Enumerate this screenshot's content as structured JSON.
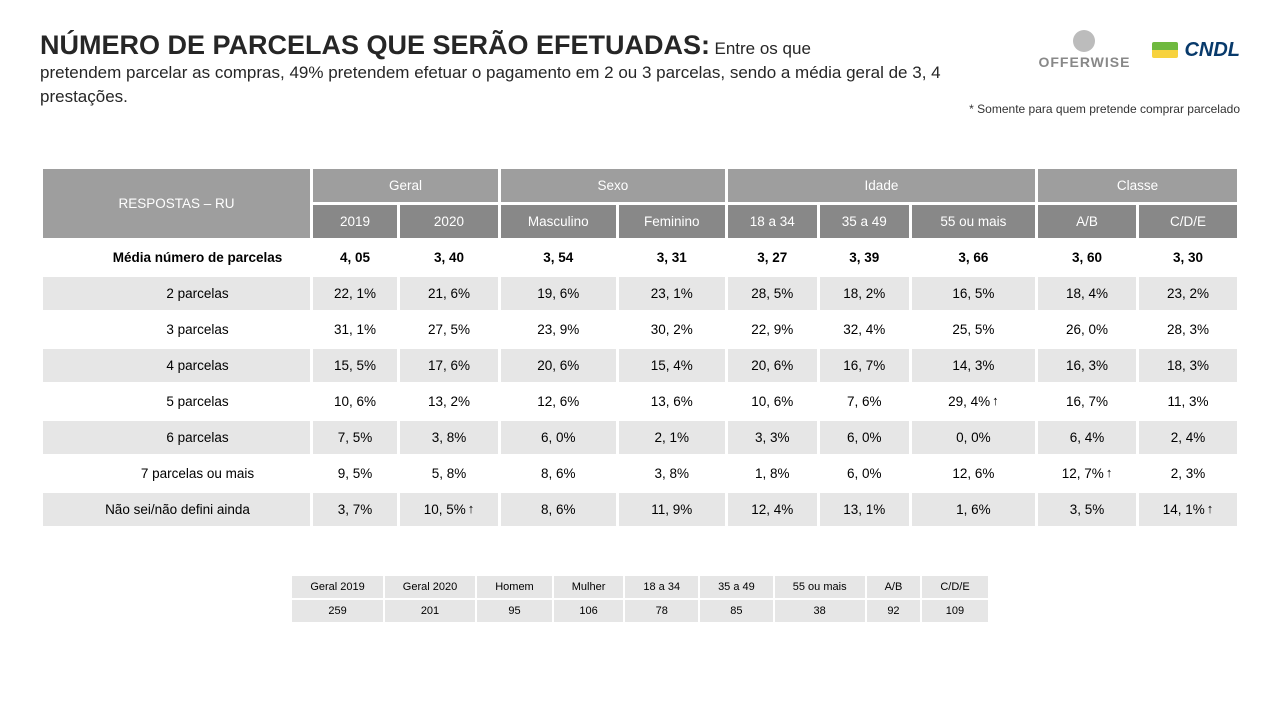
{
  "header": {
    "title": "NÚMERO DE PARCELAS QUE SERÃO EFETUADAS:",
    "subtitle_inline": "Entre os que",
    "subtitle_rest": "pretendem parcelar as compras, 49% pretendem efetuar o pagamento em 2 ou 3 parcelas, sendo a média geral de 3, 4 prestações.",
    "footnote": "* Somente para quem pretende comprar parcelado",
    "logo_offerwise": "OFFERWISE",
    "logo_cndl": "CNDL"
  },
  "table": {
    "respostas_label": "RESPOSTAS – RU",
    "groups": [
      {
        "label": "Geral",
        "span": 2
      },
      {
        "label": "Sexo",
        "span": 2
      },
      {
        "label": "Idade",
        "span": 3
      },
      {
        "label": "Classe",
        "span": 2
      }
    ],
    "subheaders": [
      "2019",
      "2020",
      "Masculino",
      "Feminino",
      "18 a 34",
      "35 a 49",
      "55 ou mais",
      "A/B",
      "C/D/E"
    ],
    "rows": [
      {
        "label": "Média número de parcelas",
        "indent": "indent1",
        "bold": true,
        "stripe": "odd",
        "cells": [
          "4, 05",
          "3, 40",
          "3, 54",
          "3, 31",
          "3, 27",
          "3, 39",
          "3, 66",
          "3, 60",
          "3, 30"
        ],
        "arrows": [
          null,
          null,
          null,
          null,
          null,
          null,
          null,
          null,
          null
        ]
      },
      {
        "label": "2 parcelas",
        "indent": "indent1",
        "bold": false,
        "stripe": "even",
        "cells": [
          "22, 1%",
          "21, 6%",
          "19, 6%",
          "23, 1%",
          "28, 5%",
          "18, 2%",
          "16, 5%",
          "18, 4%",
          "23, 2%"
        ],
        "arrows": [
          null,
          null,
          null,
          null,
          null,
          null,
          null,
          null,
          null
        ]
      },
      {
        "label": "3 parcelas",
        "indent": "indent1",
        "bold": false,
        "stripe": "odd",
        "cells": [
          "31, 1%",
          "27, 5%",
          "23, 9%",
          "30, 2%",
          "22, 9%",
          "32, 4%",
          "25, 5%",
          "26, 0%",
          "28, 3%"
        ],
        "arrows": [
          null,
          null,
          null,
          null,
          null,
          null,
          null,
          null,
          null
        ]
      },
      {
        "label": "4 parcelas",
        "indent": "indent1",
        "bold": false,
        "stripe": "even",
        "cells": [
          "15, 5%",
          "17, 6%",
          "20, 6%",
          "15, 4%",
          "20, 6%",
          "16, 7%",
          "14, 3%",
          "16, 3%",
          "18, 3%"
        ],
        "arrows": [
          null,
          null,
          null,
          null,
          null,
          null,
          null,
          null,
          null
        ]
      },
      {
        "label": "5 parcelas",
        "indent": "indent1",
        "bold": false,
        "stripe": "odd",
        "cells": [
          "10, 6%",
          "13, 2%",
          "12, 6%",
          "13, 6%",
          "10, 6%",
          "7, 6%",
          "29, 4%",
          "16, 7%",
          "11, 3%"
        ],
        "arrows": [
          null,
          null,
          null,
          null,
          null,
          null,
          "↑",
          null,
          null
        ]
      },
      {
        "label": "6 parcelas",
        "indent": "indent1",
        "bold": false,
        "stripe": "even",
        "cells": [
          "7, 5%",
          "3, 8%",
          "6, 0%",
          "2, 1%",
          "3, 3%",
          "6, 0%",
          "0, 0%",
          "6, 4%",
          "2, 4%"
        ],
        "arrows": [
          null,
          null,
          null,
          null,
          null,
          null,
          null,
          null,
          null
        ]
      },
      {
        "label": "7 parcelas ou mais",
        "indent": "indent1",
        "bold": false,
        "stripe": "odd",
        "cells": [
          "9, 5%",
          "5, 8%",
          "8, 6%",
          "3, 8%",
          "1, 8%",
          "6, 0%",
          "12, 6%",
          "12, 7%",
          "2, 3%"
        ],
        "arrows": [
          null,
          null,
          null,
          null,
          null,
          null,
          null,
          "↑",
          null
        ]
      },
      {
        "label": "Não sei/não defini ainda",
        "indent": "noindent",
        "bold": false,
        "stripe": "even",
        "cells": [
          "3, 7%",
          "10, 5%",
          "8, 6%",
          "11, 9%",
          "12, 4%",
          "13, 1%",
          "1, 6%",
          "3, 5%",
          "14, 1%"
        ],
        "arrows": [
          null,
          "↑",
          null,
          null,
          null,
          null,
          null,
          null,
          "↑"
        ]
      }
    ]
  },
  "bottom": {
    "headers": [
      "Geral 2019",
      "Geral 2020",
      "Homem",
      "Mulher",
      "18 a 34",
      "35 a 49",
      "55 ou mais",
      "A/B",
      "C/D/E"
    ],
    "values": [
      "259",
      "201",
      "95",
      "106",
      "78",
      "85",
      "38",
      "92",
      "109"
    ]
  },
  "colors": {
    "group_hdr_bg": "#9e9e9e",
    "sub_hdr_bg": "#888888",
    "row_even_bg": "#e6e6e6",
    "row_odd_bg": "#ffffff",
    "text": "#262626"
  }
}
